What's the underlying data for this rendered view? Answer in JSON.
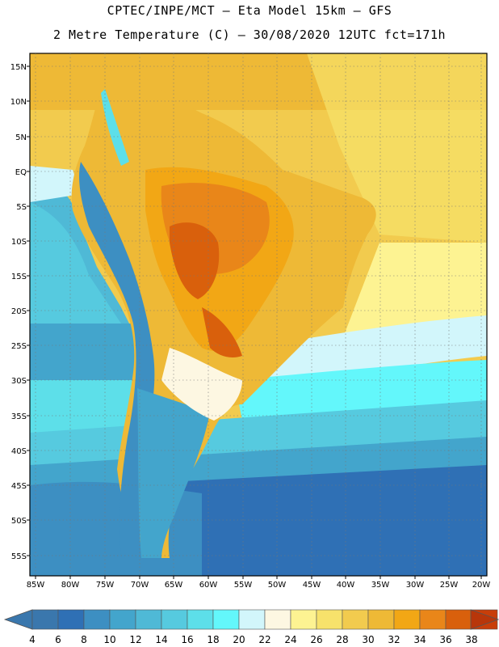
{
  "header": {
    "line1": "CPTEC/INPE/MCT –  Eta Model 15km – GFS",
    "line2": "2 Metre Temperature (C) – 30/08/2020 12UTC fct=171h"
  },
  "map": {
    "lon_labels": [
      "85W",
      "80W",
      "75W",
      "70W",
      "65W",
      "60W",
      "55W",
      "50W",
      "45W",
      "40W",
      "35W",
      "30W",
      "25W",
      "20W"
    ],
    "lat_labels": [
      "15N",
      "10N",
      "5N",
      "EQ",
      "5S",
      "10S",
      "15S",
      "20S",
      "25S",
      "30S",
      "35S",
      "40S",
      "45S",
      "50S",
      "55S"
    ]
  },
  "colorbar": {
    "ticks": [
      "4",
      "6",
      "8",
      "10",
      "12",
      "14",
      "16",
      "18",
      "20",
      "22",
      "24",
      "26",
      "28",
      "30",
      "32",
      "34",
      "36",
      "38"
    ],
    "colors": [
      "#3a77ad",
      "#2f70b5",
      "#3d8fc2",
      "#43a5cc",
      "#4fb9d6",
      "#56cadf",
      "#5ddfe9",
      "#63f7fb",
      "#d2f6fb",
      "#fdf7e2",
      "#fdf392",
      "#f7e26b",
      "#f2cb4e",
      "#eeb936",
      "#f2a715",
      "#e98619",
      "#d9600c",
      "#c83e09"
    ],
    "left_arrow_color": "#3a77ad",
    "right_arrow_color": "#b8360a"
  }
}
